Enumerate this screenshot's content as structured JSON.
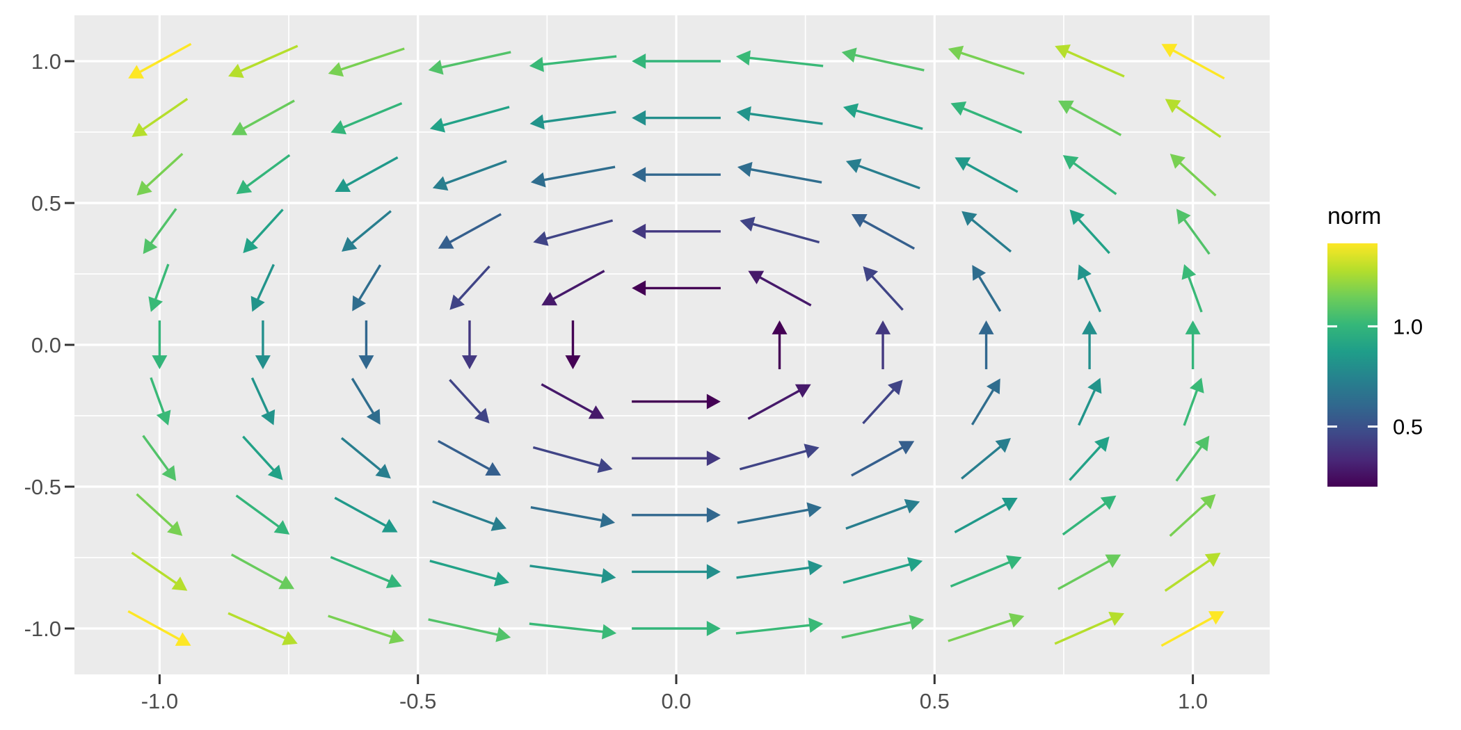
{
  "chart_data": {
    "type": "quiver",
    "title": "",
    "xlabel": "",
    "ylabel": "",
    "x_grid": [
      -1.0,
      -0.8,
      -0.6,
      -0.4,
      -0.2,
      0.0,
      0.2,
      0.4,
      0.6,
      0.8,
      1.0
    ],
    "y_grid": [
      -1.0,
      -0.8,
      -0.6,
      -0.4,
      -0.2,
      0.0,
      0.2,
      0.4,
      0.6,
      0.8,
      1.0
    ],
    "excluded_points": [
      [
        0.0,
        0.0
      ]
    ],
    "vector_field": {
      "u": "-y",
      "v": "x",
      "rotation": "counterclockwise",
      "normalized_length_data_units": 0.172,
      "color_by": "norm = sqrt(x^2 + y^2)"
    },
    "x_ticks": {
      "values": [
        -1.0,
        -0.5,
        0.0,
        0.5,
        1.0
      ],
      "labels": [
        "-1.0",
        "-0.5",
        "0.0",
        "0.5",
        "1.0"
      ]
    },
    "y_ticks": {
      "values": [
        1.0,
        0.5,
        0.0,
        -0.5,
        -1.0
      ],
      "labels": [
        "1.0",
        "0.5",
        "0.0",
        "-0.5",
        "-1.0"
      ]
    },
    "axis_range": {
      "x": [
        -1.157,
        1.157
      ],
      "y": [
        -1.162,
        1.162
      ]
    },
    "grid": {
      "major": true,
      "minor": true
    },
    "legend": {
      "title": "norm",
      "position": "right",
      "tick_labels": [
        "1.0",
        "0.5"
      ],
      "tick_values": [
        1.0,
        0.5
      ],
      "limits": [
        0.2,
        1.4142
      ]
    },
    "colors": {
      "panel_bg": "#EBEBEB",
      "gridline": "#FFFFFF",
      "tick_mark": "#333333",
      "tick_label": "#4D4D4D",
      "legend_text": "#000000",
      "viridis_stops": [
        "#440154",
        "#482878",
        "#3E4A89",
        "#31688E",
        "#26828E",
        "#1F9E89",
        "#35B779",
        "#6DCD59",
        "#B4DE2C",
        "#FDE725"
      ]
    }
  }
}
